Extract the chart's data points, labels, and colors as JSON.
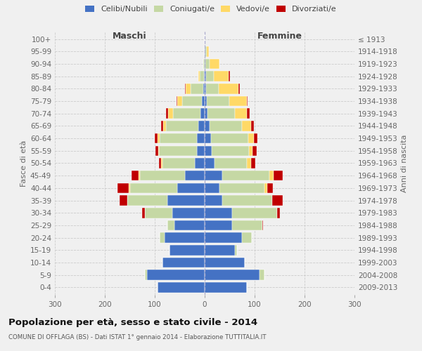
{
  "age_groups": [
    "0-4",
    "5-9",
    "10-14",
    "15-19",
    "20-24",
    "25-29",
    "30-34",
    "35-39",
    "40-44",
    "45-49",
    "50-54",
    "55-59",
    "60-64",
    "65-69",
    "70-74",
    "75-79",
    "80-84",
    "85-89",
    "90-94",
    "95-99",
    "100+"
  ],
  "birth_years": [
    "2009-2013",
    "2004-2008",
    "1999-2003",
    "1994-1998",
    "1989-1993",
    "1984-1988",
    "1979-1983",
    "1974-1978",
    "1969-1973",
    "1964-1968",
    "1959-1963",
    "1954-1958",
    "1949-1953",
    "1944-1948",
    "1939-1943",
    "1934-1938",
    "1929-1933",
    "1924-1928",
    "1919-1923",
    "1914-1918",
    "≤ 1913"
  ],
  "male": {
    "celibi": [
      95,
      115,
      85,
      70,
      80,
      60,
      65,
      75,
      55,
      40,
      20,
      16,
      15,
      13,
      8,
      5,
      3,
      2,
      0,
      0,
      0
    ],
    "coniugati": [
      0,
      5,
      0,
      0,
      10,
      15,
      55,
      80,
      95,
      90,
      65,
      75,
      75,
      65,
      55,
      40,
      25,
      8,
      3,
      0,
      0
    ],
    "vedovi": [
      0,
      0,
      0,
      0,
      0,
      0,
      0,
      0,
      2,
      2,
      2,
      2,
      4,
      5,
      10,
      10,
      10,
      2,
      0,
      0,
      0
    ],
    "divorziati": [
      0,
      0,
      0,
      0,
      0,
      0,
      5,
      15,
      22,
      15,
      5,
      6,
      6,
      4,
      5,
      2,
      2,
      0,
      0,
      0,
      0
    ]
  },
  "female": {
    "nubili": [
      85,
      110,
      80,
      60,
      75,
      55,
      55,
      35,
      30,
      35,
      20,
      14,
      12,
      10,
      5,
      4,
      3,
      3,
      2,
      1,
      0
    ],
    "coniugate": [
      0,
      10,
      0,
      5,
      20,
      60,
      90,
      100,
      90,
      95,
      65,
      75,
      75,
      65,
      55,
      45,
      25,
      15,
      8,
      3,
      0
    ],
    "vedove": [
      0,
      0,
      0,
      0,
      0,
      0,
      0,
      0,
      5,
      8,
      8,
      7,
      12,
      18,
      25,
      35,
      40,
      30,
      20,
      5,
      0
    ],
    "divorziate": [
      0,
      0,
      0,
      0,
      0,
      2,
      5,
      22,
      12,
      18,
      8,
      8,
      6,
      5,
      5,
      2,
      2,
      2,
      0,
      0,
      0
    ]
  },
  "colors": {
    "celibi": "#4472C4",
    "coniugati": "#C5D8A4",
    "vedovi": "#FFD966",
    "divorziati": "#C00000"
  },
  "xlim": 300,
  "title": "Popolazione per età, sesso e stato civile - 2014",
  "subtitle": "COMUNE DI OFFLAGA (BS) - Dati ISTAT 1° gennaio 2014 - Elaborazione TUTTITALIA.IT",
  "ylabel": "Fasce di età",
  "ylabel_right": "Anni di nascita",
  "xlabel_left": "Maschi",
  "xlabel_right": "Femmine",
  "background_color": "#f0f0f0",
  "grid_color": "#cccccc"
}
